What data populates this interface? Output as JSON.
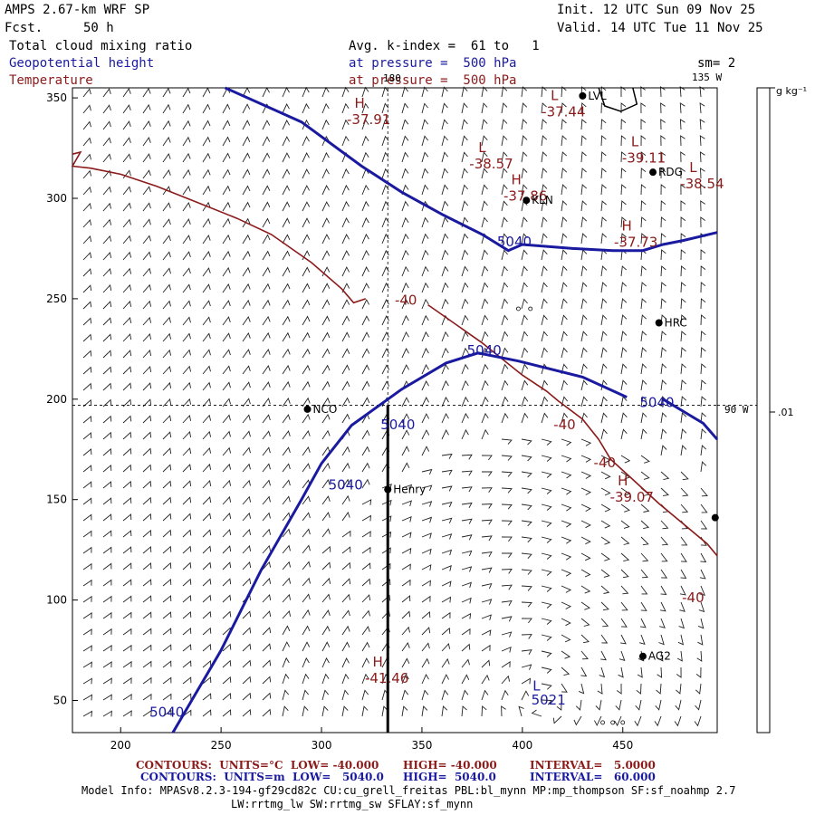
{
  "header": {
    "title": "AMPS 2.67-km WRF SP",
    "fcst_label": "Fcst.",
    "fcst_value": "50 h",
    "init": "Init. 12 UTC Sun 09 Nov 25",
    "valid": "Valid. 14 UTC Tue 11 Nov 25",
    "field1": "Total cloud mixing ratio",
    "field2": "Geopotential height",
    "field3": "Temperature",
    "avg": "Avg. k-index =  61 to   1",
    "pres1": "at pressure =  500 hPa",
    "pres2": "at pressure =  500 hPa",
    "sm": "sm= 2",
    "lon135": "135 W",
    "lon180": "180",
    "lon90": "90 W"
  },
  "colorbar": {
    "unit": "g kg⁻¹",
    "tick": ".01"
  },
  "colors": {
    "height": "#1a1aa0",
    "temp": "#8b1a1a",
    "wind": "#000000"
  },
  "footer": {
    "l1a": "CONTOURS:  UNITS=°C  LOW= -40.000",
    "l1b": "HIGH= -40.000",
    "l1c": "INTERVAL=   5.0000",
    "l2a": "CONTOURS:  UNITS=m  LOW=   5040.0",
    "l2b": "HIGH=  5040.0",
    "l2c": "INTERVAL=   60.000",
    "model1": "Model Info: MPASv8.2.3-194-gf29cd82c CU:cu_grell_freitas PBL:bl_mynn MP:mp_thompson SF:sf_noahmp 2.7",
    "model2": "LW:rrtmg_lw SW:rrtmg_sw SFLAY:sf_mynn"
  },
  "chart_data": {
    "type": "contour",
    "xlim": [
      176,
      497
    ],
    "ylim": [
      34,
      355
    ],
    "xticks": [
      200,
      250,
      300,
      350,
      400,
      450
    ],
    "yticks": [
      50,
      100,
      150,
      200,
      250,
      300,
      350
    ],
    "height_contours": [
      {
        "name": "5040 north",
        "points": [
          [
            252,
            355
          ],
          [
            290,
            338
          ],
          [
            320,
            316
          ],
          [
            340,
            303
          ],
          [
            360,
            292
          ],
          [
            380,
            282
          ],
          [
            393,
            274
          ],
          [
            400,
            277
          ],
          [
            425,
            275
          ],
          [
            445,
            274
          ],
          [
            460,
            274
          ],
          [
            470,
            277
          ],
          [
            480,
            279
          ],
          [
            497,
            283
          ]
        ]
      },
      {
        "name": "5040 south",
        "points": [
          [
            226,
            34
          ],
          [
            250,
            75
          ],
          [
            270,
            115
          ],
          [
            290,
            150
          ],
          [
            300,
            168
          ],
          [
            315,
            187
          ],
          [
            340,
            205
          ],
          [
            362,
            218
          ],
          [
            378,
            223
          ],
          [
            398,
            219
          ],
          [
            430,
            211
          ],
          [
            452,
            201
          ]
        ]
      },
      {
        "name": "5040 east",
        "points": [
          [
            470,
            200
          ],
          [
            490,
            188
          ],
          [
            497,
            180
          ]
        ]
      }
    ],
    "height_labels": [
      {
        "text": "5040",
        "x": 396,
        "y": 276
      },
      {
        "text": "5040",
        "x": 381,
        "y": 222
      },
      {
        "text": "5040",
        "x": 338,
        "y": 185
      },
      {
        "text": "5040",
        "x": 312,
        "y": 155
      },
      {
        "text": "5040",
        "x": 467,
        "y": 196
      },
      {
        "text": "5040",
        "x": 223,
        "y": 42
      },
      {
        "text": "5021",
        "x": 413,
        "y": 48
      }
    ],
    "temp_contours": [
      {
        "name": "-40 NW",
        "points": [
          [
            176,
            322
          ],
          [
            180,
            323
          ],
          [
            176,
            316
          ],
          [
            185,
            315
          ],
          [
            200,
            312
          ],
          [
            218,
            306
          ],
          [
            238,
            298
          ],
          [
            258,
            290
          ],
          [
            275,
            282
          ],
          [
            295,
            268
          ],
          [
            310,
            255
          ],
          [
            316,
            248
          ],
          [
            322,
            250
          ]
        ]
      },
      {
        "name": "-40 center",
        "points": [
          [
            353,
            247
          ],
          [
            380,
            228
          ],
          [
            400,
            212
          ],
          [
            412,
            204
          ],
          [
            418,
            199
          ],
          [
            430,
            190
          ],
          [
            438,
            180
          ],
          [
            444,
            170
          ],
          [
            455,
            160
          ],
          [
            468,
            148
          ],
          [
            480,
            138
          ],
          [
            492,
            128
          ],
          [
            497,
            122
          ]
        ]
      }
    ],
    "temp_labels": [
      {
        "text": "-40",
        "x": 342,
        "y": 247
      },
      {
        "text": "-40",
        "x": 421,
        "y": 185
      },
      {
        "text": "-40",
        "x": 441,
        "y": 166
      },
      {
        "text": "-40",
        "x": 485,
        "y": 99
      }
    ],
    "extrema": [
      {
        "letter": "H",
        "value": "-37.91",
        "x": 319,
        "y": 345,
        "kind": "temp"
      },
      {
        "letter": "L",
        "value": "-37.44",
        "x": 416,
        "y": 349,
        "kind": "temp"
      },
      {
        "letter": "L",
        "value": "-38.57",
        "x": 380,
        "y": 323,
        "kind": "temp"
      },
      {
        "letter": "L",
        "value": "-39.11",
        "x": 456,
        "y": 326,
        "kind": "temp"
      },
      {
        "letter": "H",
        "value": "-37.86",
        "x": 397,
        "y": 307,
        "kind": "temp"
      },
      {
        "letter": "L",
        "value": "-38.54",
        "x": 485,
        "y": 313,
        "kind": "temp"
      },
      {
        "letter": "H",
        "value": "-37.73",
        "x": 452,
        "y": 284,
        "kind": "temp"
      },
      {
        "letter": "H",
        "value": "-39.07",
        "x": 450,
        "y": 157,
        "kind": "temp"
      },
      {
        "letter": "H",
        "value": "-41.46",
        "x": 328,
        "y": 67,
        "kind": "temp"
      },
      {
        "letter": "L",
        "value": "",
        "x": 407,
        "y": 55,
        "kind": "height"
      }
    ],
    "stations": [
      {
        "name": "KLN",
        "x": 402,
        "y": 299
      },
      {
        "name": "RDG",
        "x": 465,
        "y": 313
      },
      {
        "name": "HRC",
        "x": 468,
        "y": 238
      },
      {
        "name": "NCO",
        "x": 293,
        "y": 195
      },
      {
        "name": "Henry",
        "x": 333,
        "y": 155
      },
      {
        "name": "AG2",
        "x": 460,
        "y": 72
      },
      {
        "name": "LVL",
        "x": 430,
        "y": 351
      },
      {
        "name": "",
        "x": 496,
        "y": 141
      }
    ]
  }
}
